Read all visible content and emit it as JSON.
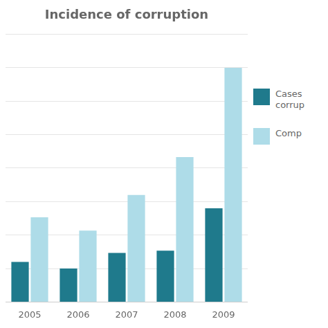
{
  "chart_data": {
    "type": "bar",
    "title": "Incidence of corruption",
    "categories": [
      "2005",
      "2006",
      "2007",
      "2008",
      "2009"
    ],
    "series": [
      {
        "name": "Cases \ncorrup",
        "color": "#1F7A8C",
        "values": [
          1.8,
          1.5,
          2.2,
          2.3,
          4.2
        ]
      },
      {
        "name": "Comp",
        "color": "#AEDCE8",
        "values": [
          3.8,
          3.2,
          4.8,
          6.5,
          10.5
        ]
      }
    ],
    "ylim": [
      0,
      12
    ],
    "yticks": [
      0,
      1.5,
      3,
      4.5,
      6,
      7.5,
      9,
      10.5,
      12
    ],
    "grid": true,
    "legend": "right",
    "tick_labels": "x"
  }
}
